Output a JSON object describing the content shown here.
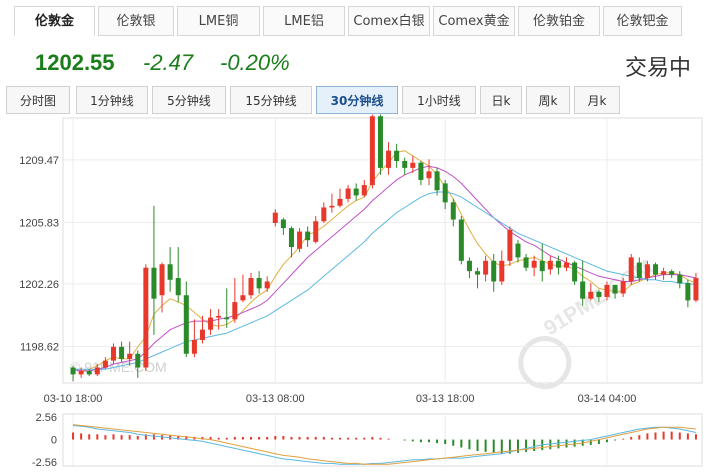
{
  "top_tabs": [
    "伦敦金",
    "伦敦银",
    "LME铜",
    "LME铝",
    "Comex白银",
    "Comex黄金",
    "伦敦铂金",
    "伦敦钯金"
  ],
  "quote": {
    "price": "1202.55",
    "change": "-2.47",
    "change_pct": "-0.20%",
    "status": "交易中",
    "color_down": "#1a7d1a"
  },
  "periods": [
    "分时图",
    "1分钟线",
    "5分钟线",
    "15分钟线",
    "30分钟线",
    "1小时线",
    "日k",
    "周k",
    "月k"
  ],
  "watermark": "© 91PME.COM",
  "logo_text": "91PME.COM",
  "chart_data": {
    "type": "candlestick",
    "y_ticks": [
      "1209.47",
      "1205.83",
      "1202.26",
      "1198.62"
    ],
    "y_tick_values": [
      1209.47,
      1205.83,
      1202.26,
      1198.62
    ],
    "ylim": [
      1196.5,
      1211.9
    ],
    "x_ticks": [
      "03-10 18:00",
      "03-13 08:00",
      "03-13 18:00",
      "03-14 04:00"
    ],
    "x_tick_index": [
      0,
      25,
      46,
      66
    ],
    "up_color": "#e8382c",
    "down_color": "#2a8a2a",
    "ma_colors": [
      "#e0b040",
      "#c050c8",
      "#5bb8e0"
    ],
    "candles": [
      [
        1197.4,
        1197.0,
        1196.6,
        1197.5
      ],
      [
        1197.0,
        1197.2,
        1196.8,
        1197.4
      ],
      [
        1197.2,
        1197.0,
        1196.9,
        1197.3
      ],
      [
        1197.0,
        1197.4,
        1196.9,
        1197.6
      ],
      [
        1197.4,
        1197.8,
        1197.3,
        1198.0
      ],
      [
        1197.8,
        1198.6,
        1197.6,
        1198.8
      ],
      [
        1198.6,
        1197.9,
        1197.7,
        1198.9
      ],
      [
        1197.9,
        1198.2,
        1197.5,
        1198.9
      ],
      [
        1198.2,
        1197.4,
        1196.8,
        1198.4
      ],
      [
        1197.4,
        1203.2,
        1197.2,
        1203.4
      ],
      [
        1203.2,
        1201.4,
        1199.3,
        1206.8
      ],
      [
        1201.6,
        1203.4,
        1200.6,
        1203.5
      ],
      [
        1203.4,
        1202.5,
        1201.8,
        1204.4
      ],
      [
        1202.6,
        1201.6,
        1201.2,
        1204.4
      ],
      [
        1201.6,
        1198.2,
        1198.0,
        1202.4
      ],
      [
        1198.2,
        1199.0,
        1198.0,
        1200.2
      ],
      [
        1199.0,
        1199.6,
        1198.8,
        1200.4
      ],
      [
        1199.6,
        1200.3,
        1199.3,
        1200.8
      ],
      [
        1200.3,
        1200.4,
        1199.6,
        1200.8
      ],
      [
        1200.3,
        1200.2,
        1199.7,
        1202.0
      ],
      [
        1200.2,
        1201.2,
        1200.0,
        1202.6
      ],
      [
        1201.3,
        1201.6,
        1201.2,
        1202.8
      ],
      [
        1201.6,
        1202.6,
        1201.4,
        1202.9
      ],
      [
        1202.6,
        1202.0,
        1201.7,
        1203.0
      ],
      [
        1202.0,
        1202.4,
        1201.8,
        1202.7
      ],
      [
        1205.8,
        1206.4,
        1205.6,
        1206.6
      ],
      [
        1206.0,
        1205.5,
        1205.1,
        1206.1
      ],
      [
        1205.5,
        1204.4,
        1203.8,
        1205.6
      ],
      [
        1204.3,
        1205.3,
        1204.1,
        1205.5
      ],
      [
        1205.3,
        1204.8,
        1204.4,
        1205.6
      ],
      [
        1204.7,
        1205.9,
        1204.6,
        1206.2
      ],
      [
        1205.9,
        1206.7,
        1205.8,
        1207.0
      ],
      [
        1206.7,
        1206.8,
        1206.4,
        1207.5
      ],
      [
        1206.8,
        1207.2,
        1206.7,
        1207.8
      ],
      [
        1207.2,
        1207.8,
        1207.0,
        1208.0
      ],
      [
        1207.8,
        1207.4,
        1207.1,
        1208.1
      ],
      [
        1207.4,
        1208.0,
        1207.3,
        1208.3
      ],
      [
        1208.0,
        1212.0,
        1207.8,
        1212.1
      ],
      [
        1212.0,
        1209.0,
        1208.6,
        1212.1
      ],
      [
        1209.0,
        1210.0,
        1208.6,
        1210.5
      ],
      [
        1210.0,
        1209.4,
        1209.0,
        1210.4
      ],
      [
        1209.4,
        1209.0,
        1208.6,
        1209.6
      ],
      [
        1209.0,
        1209.3,
        1208.7,
        1209.7
      ],
      [
        1209.3,
        1208.3,
        1208.0,
        1209.4
      ],
      [
        1208.4,
        1208.8,
        1208.0,
        1209.5
      ],
      [
        1208.8,
        1207.7,
        1207.4,
        1209.0
      ],
      [
        1208.1,
        1207.0,
        1206.6,
        1208.3
      ],
      [
        1207.0,
        1206.0,
        1205.6,
        1207.2
      ],
      [
        1206.0,
        1203.6,
        1203.4,
        1206.2
      ],
      [
        1203.6,
        1203.0,
        1202.6,
        1203.8
      ],
      [
        1203.0,
        1202.8,
        1202.0,
        1203.2
      ],
      [
        1202.8,
        1203.6,
        1202.4,
        1203.9
      ],
      [
        1203.6,
        1202.4,
        1201.8,
        1204.0
      ],
      [
        1202.4,
        1203.6,
        1202.2,
        1204.2
      ],
      [
        1203.6,
        1205.4,
        1203.3,
        1205.6
      ],
      [
        1204.6,
        1203.8,
        1203.5,
        1204.8
      ],
      [
        1203.8,
        1203.2,
        1203.0,
        1204.0
      ],
      [
        1203.2,
        1203.6,
        1202.7,
        1203.9
      ],
      [
        1203.6,
        1203.0,
        1202.4,
        1204.6
      ],
      [
        1203.1,
        1203.6,
        1202.8,
        1203.9
      ],
      [
        1203.6,
        1203.2,
        1202.8,
        1203.9
      ],
      [
        1203.2,
        1203.5,
        1203.0,
        1203.8
      ],
      [
        1203.5,
        1202.4,
        1202.2,
        1203.6
      ],
      [
        1202.4,
        1201.4,
        1201.0,
        1203.6
      ],
      [
        1201.4,
        1201.8,
        1201.3,
        1202.3
      ],
      [
        1201.8,
        1201.5,
        1201.2,
        1201.9
      ],
      [
        1201.5,
        1202.2,
        1201.3,
        1202.4
      ],
      [
        1202.2,
        1201.7,
        1201.4,
        1202.2
      ],
      [
        1201.7,
        1202.4,
        1201.5,
        1202.6
      ],
      [
        1202.4,
        1203.8,
        1202.2,
        1204.0
      ],
      [
        1203.5,
        1202.6,
        1202.4,
        1203.8
      ],
      [
        1202.6,
        1203.4,
        1202.4,
        1203.6
      ],
      [
        1203.4,
        1202.8,
        1202.5,
        1203.5
      ],
      [
        1202.8,
        1203.0,
        1202.5,
        1203.2
      ],
      [
        1203.0,
        1202.8,
        1202.6,
        1203.1
      ],
      [
        1202.8,
        1202.3,
        1202.0,
        1203.0
      ],
      [
        1202.3,
        1201.3,
        1200.9,
        1202.5
      ],
      [
        1201.3,
        1202.6,
        1201.2,
        1202.9
      ]
    ],
    "ma": [
      [
        1197.3,
        1197.2,
        1197.3,
        1197.5,
        1197.8,
        1198.0,
        1197.9,
        1197.9,
        1198.6,
        1199.2,
        1200.5,
        1201.0,
        1201.4,
        1201.2,
        1201.0,
        1200.6,
        1200.2,
        1199.9,
        1199.8,
        1199.9,
        1200.2,
        1200.7,
        1201.2,
        1201.6,
        1201.9,
        1202.7,
        1203.4,
        1203.9,
        1204.4,
        1205.1,
        1205.3,
        1205.6,
        1206.0,
        1206.4,
        1206.8,
        1207.1,
        1207.3,
        1208.2,
        1208.8,
        1209.3,
        1209.9,
        1210.0,
        1209.7,
        1209.4,
        1209.1,
        1208.6,
        1207.9,
        1207.2,
        1206.3,
        1205.4,
        1204.6,
        1204.0,
        1203.5,
        1203.3,
        1203.4,
        1203.6,
        1203.7,
        1203.8,
        1203.6,
        1203.4,
        1203.3,
        1203.3,
        1203.1,
        1202.7,
        1202.4,
        1202.0,
        1201.9,
        1201.8,
        1201.8,
        1202.2,
        1202.4,
        1202.6,
        1202.8,
        1202.9,
        1202.9,
        1202.8,
        1202.5,
        1202.3
      ],
      [
        1197.3,
        1197.2,
        1197.2,
        1197.3,
        1197.4,
        1197.6,
        1197.7,
        1197.8,
        1197.9,
        1198.3,
        1198.8,
        1199.2,
        1199.6,
        1199.8,
        1200.0,
        1200.1,
        1200.1,
        1200.1,
        1200.2,
        1200.3,
        1200.4,
        1200.6,
        1200.8,
        1201.0,
        1201.3,
        1201.8,
        1202.3,
        1202.8,
        1203.3,
        1203.8,
        1204.2,
        1204.6,
        1205.0,
        1205.4,
        1205.8,
        1206.2,
        1206.6,
        1207.1,
        1207.5,
        1207.9,
        1208.3,
        1208.6,
        1208.8,
        1209.0,
        1209.1,
        1209.0,
        1208.8,
        1208.5,
        1208.1,
        1207.6,
        1207.1,
        1206.6,
        1206.1,
        1205.7,
        1205.3,
        1205.0,
        1204.7,
        1204.5,
        1204.2,
        1203.9,
        1203.7,
        1203.5,
        1203.3,
        1203.1,
        1202.9,
        1202.7,
        1202.6,
        1202.5,
        1202.4,
        1202.4,
        1202.5,
        1202.6,
        1202.7,
        1202.8,
        1202.8,
        1202.8,
        1202.7,
        1202.6
      ],
      [
        1197.3,
        1197.3,
        1197.3,
        1197.3,
        1197.3,
        1197.4,
        1197.5,
        1197.6,
        1197.7,
        1197.9,
        1198.1,
        1198.3,
        1198.5,
        1198.7,
        1198.9,
        1199.0,
        1199.1,
        1199.2,
        1199.3,
        1199.4,
        1199.6,
        1199.8,
        1200.0,
        1200.2,
        1200.4,
        1200.7,
        1201.0,
        1201.3,
        1201.6,
        1201.9,
        1202.3,
        1202.7,
        1203.1,
        1203.5,
        1203.9,
        1204.3,
        1204.7,
        1205.2,
        1205.6,
        1206.0,
        1206.4,
        1206.7,
        1207.0,
        1207.3,
        1207.5,
        1207.6,
        1207.6,
        1207.5,
        1207.3,
        1207.0,
        1206.7,
        1206.4,
        1206.1,
        1205.8,
        1205.5,
        1205.2,
        1205.0,
        1204.8,
        1204.6,
        1204.4,
        1204.2,
        1204.0,
        1203.8,
        1203.6,
        1203.4,
        1203.2,
        1203.0,
        1202.9,
        1202.8,
        1202.7,
        1202.6,
        1202.5,
        1202.5,
        1202.4,
        1202.4,
        1202.3,
        1202.3,
        1202.2
      ]
    ],
    "macd": {
      "y_ticks": [
        "2.56",
        "0",
        "-2.56"
      ],
      "ylim": [
        -3.0,
        2.9
      ],
      "hist": [
        0.8,
        0.7,
        0.6,
        0.6,
        0.5,
        0.6,
        0.5,
        0.5,
        0.4,
        0.6,
        0.6,
        0.5,
        0.5,
        0.4,
        0.4,
        0.3,
        0.3,
        0.3,
        0.2,
        0.2,
        0.3,
        0.3,
        0.3,
        0.3,
        0.3,
        0.4,
        0.4,
        0.3,
        0.3,
        0.3,
        0.3,
        0.3,
        0.2,
        0.2,
        0.2,
        0.2,
        0.2,
        0.3,
        0.2,
        0.1,
        0.0,
        -0.1,
        -0.2,
        -0.3,
        -0.3,
        -0.4,
        -0.5,
        -0.7,
        -0.9,
        -1.1,
        -1.3,
        -1.4,
        -1.5,
        -1.6,
        -1.6,
        -1.5,
        -1.4,
        -1.3,
        -1.2,
        -1.1,
        -1.0,
        -0.9,
        -0.8,
        -0.7,
        -0.6,
        -0.5,
        -0.3,
        -0.1,
        0.1,
        0.3,
        0.5,
        0.7,
        0.8,
        0.9,
        0.9,
        0.8,
        0.7,
        0.6
      ],
      "dif": [
        1.6,
        1.5,
        1.4,
        1.2,
        1.1,
        1.0,
        0.9,
        0.8,
        0.6,
        0.5,
        0.4,
        0.3,
        0.2,
        0.1,
        0.0,
        -0.1,
        -0.2,
        -0.4,
        -0.6,
        -0.8,
        -1.0,
        -1.2,
        -1.4,
        -1.6,
        -1.8,
        -2.0,
        -2.2,
        -2.3,
        -2.4,
        -2.5,
        -2.6,
        -2.7,
        -2.7,
        -2.8,
        -2.8,
        -2.8,
        -2.8,
        -2.7,
        -2.7,
        -2.6,
        -2.5,
        -2.4,
        -2.3,
        -2.3,
        -2.2,
        -2.2,
        -2.1,
        -2.1,
        -2.1,
        -2.0,
        -1.9,
        -1.8,
        -1.7,
        -1.6,
        -1.4,
        -1.2,
        -1.0,
        -0.8,
        -0.6,
        -0.5,
        -0.4,
        -0.3,
        -0.2,
        -0.1,
        0.0,
        0.2,
        0.4,
        0.6,
        0.8,
        1.0,
        1.2,
        1.3,
        1.4,
        1.4,
        1.3,
        1.2,
        1.0,
        0.8
      ],
      "dea": [
        1.7,
        1.6,
        1.5,
        1.4,
        1.3,
        1.2,
        1.1,
        1.0,
        0.9,
        0.8,
        0.7,
        0.6,
        0.5,
        0.4,
        0.3,
        0.2,
        0.1,
        0.0,
        -0.2,
        -0.4,
        -0.6,
        -0.8,
        -1.0,
        -1.2,
        -1.4,
        -1.6,
        -1.8,
        -1.9,
        -2.0,
        -2.2,
        -2.3,
        -2.4,
        -2.5,
        -2.6,
        -2.7,
        -2.7,
        -2.8,
        -2.8,
        -2.8,
        -2.8,
        -2.7,
        -2.6,
        -2.5,
        -2.4,
        -2.3,
        -2.2,
        -2.1,
        -2.0,
        -1.9,
        -1.8,
        -1.7,
        -1.6,
        -1.5,
        -1.4,
        -1.3,
        -1.2,
        -1.1,
        -1.0,
        -0.9,
        -0.8,
        -0.7,
        -0.6,
        -0.5,
        -0.4,
        -0.2,
        0.0,
        0.2,
        0.4,
        0.6,
        0.8,
        1.0,
        1.2,
        1.3,
        1.4,
        1.4,
        1.4,
        1.3,
        1.2
      ]
    }
  }
}
